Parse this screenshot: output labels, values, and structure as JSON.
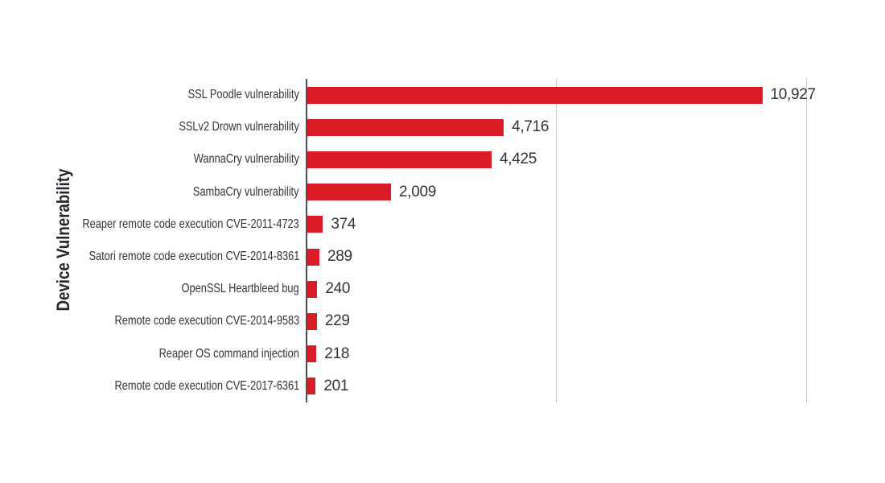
{
  "chart": {
    "y_axis_title": "Device Vulnerability",
    "bar_color": "#d81b26",
    "axis_color": "#4e4e56",
    "grid_color": "#c9c9c9",
    "text_color": "#33333a",
    "title_color": "#26262e",
    "background_color": "#ffffff"
  },
  "chart_data": {
    "type": "bar",
    "orientation": "horizontal",
    "title": "",
    "xlabel": "",
    "ylabel": "Device Vulnerability",
    "categories": [
      "SSL Poodle vulnerability",
      "SSLv2 Drown vulnerability",
      "WannaCry vulnerability",
      "SambaCry vulnerability",
      "Reaper remote code execution CVE-2011-4723",
      "Satori remote code execution CVE-2014-8361",
      "OpenSSL Heartbleed bug",
      "Remote code execution CVE-2014-9583",
      "Reaper OS command injection",
      "Remote code execution CVE-2017-6361"
    ],
    "values": [
      10927,
      4716,
      4425,
      2009,
      374,
      289,
      240,
      229,
      218,
      201
    ],
    "value_labels": [
      "10,927",
      "4,716",
      "4,425",
      "2,009",
      "374",
      "289",
      "240",
      "229",
      "218",
      "201"
    ],
    "xlim": [
      0,
      12000
    ],
    "gridlines_x": [
      6000,
      12000
    ],
    "grid": "vertical-only",
    "legend": false,
    "data_labels": "outside-end"
  }
}
